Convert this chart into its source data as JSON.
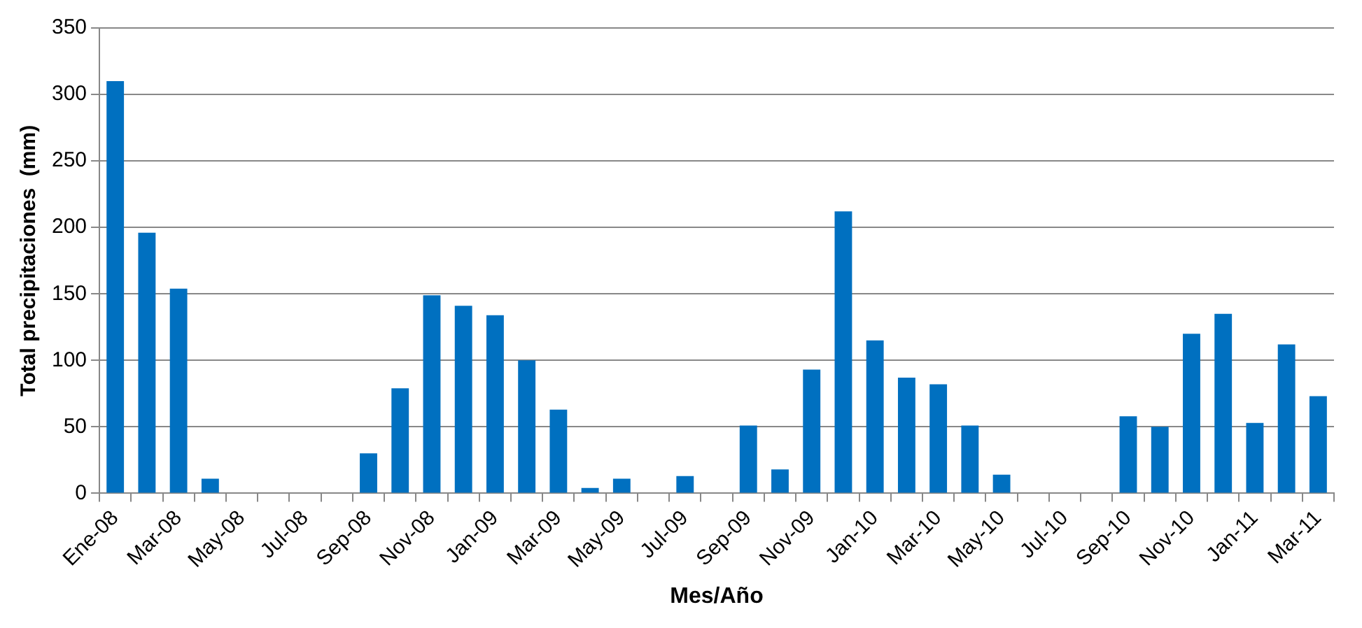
{
  "chart_data": {
    "type": "bar",
    "xlabel": "Mes/Año",
    "ylabel": "Total precipitaciones  (mm)",
    "categories": [
      "Ene-08",
      null,
      "Mar-08",
      null,
      "May-08",
      null,
      "Jul-08",
      null,
      "Sep-08",
      null,
      "Nov-08",
      null,
      "Jan-09",
      null,
      "Mar-09",
      null,
      "May-09",
      null,
      "Jul-09",
      null,
      "Sep-09",
      null,
      "Nov-09",
      null,
      "Jan-10",
      null,
      "Mar-10",
      null,
      "May-10",
      null,
      "Jul-10",
      null,
      "Sep-10",
      null,
      "Nov-10",
      null,
      "Jan-11",
      null,
      "Mar-11"
    ],
    "values": [
      310,
      196,
      154,
      11,
      0,
      0,
      0,
      0,
      30,
      79,
      149,
      141,
      134,
      100,
      63,
      4,
      11,
      0,
      13,
      0,
      51,
      18,
      93,
      212,
      115,
      87,
      82,
      51,
      14,
      0,
      0,
      0,
      58,
      50,
      120,
      135,
      53,
      112,
      73
    ],
    "color": "#0070c0",
    "ylim": [
      0,
      350
    ],
    "yticks": [
      0,
      50,
      100,
      150,
      200,
      250,
      300,
      350
    ],
    "grid": "y",
    "legend": false
  }
}
